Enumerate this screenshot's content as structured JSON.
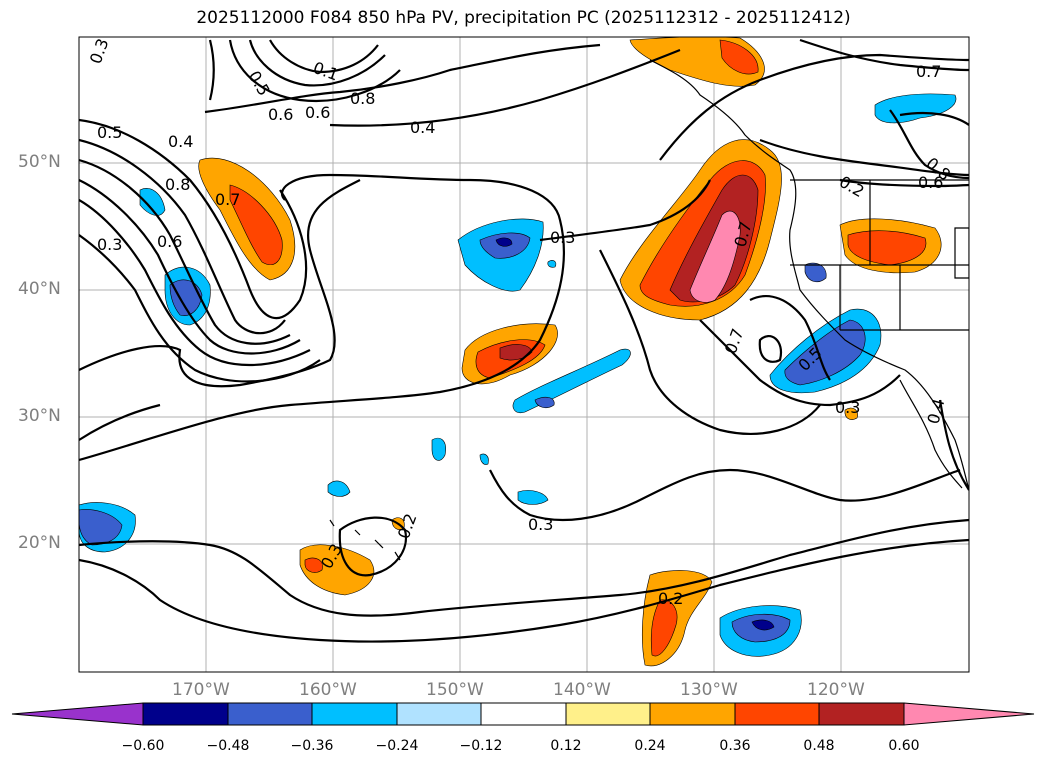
{
  "title": "2025112000 F084 850 hPa PV, precipitation PC (2025112312 - 2025112412)",
  "lat_labels": [
    "50°N",
    "40°N",
    "30°N",
    "20°N"
  ],
  "lon_labels": [
    "170°W",
    "160°W",
    "150°W",
    "140°W",
    "130°W",
    "120°W"
  ],
  "contour_labels": [
    "0.3",
    "0.5",
    "0.4",
    "0.8",
    "0.7",
    "0.6",
    "0.3",
    "0.2",
    "0.3",
    "0.3",
    "0.3",
    "0.2",
    "0.3",
    "0.4",
    "0.6",
    "0.7",
    "0.5",
    "0.7",
    "0.8",
    "0.6",
    "0.7",
    "0.1",
    "0.4",
    "0.5",
    "0.6",
    "0.8",
    "0.2"
  ],
  "colorbar": {
    "ticks": [
      "−0.60",
      "−0.48",
      "−0.36",
      "−0.24",
      "−0.12",
      "0.12",
      "0.24",
      "0.36",
      "0.48",
      "0.60"
    ],
    "colors": [
      "#9932cc",
      "#00008b",
      "#3a5fcd",
      "#00bfff",
      "#b0e2ff",
      "#ffffff",
      "#fff08a",
      "#ffa500",
      "#ff4500",
      "#b22222",
      "#ff88b0"
    ]
  }
}
